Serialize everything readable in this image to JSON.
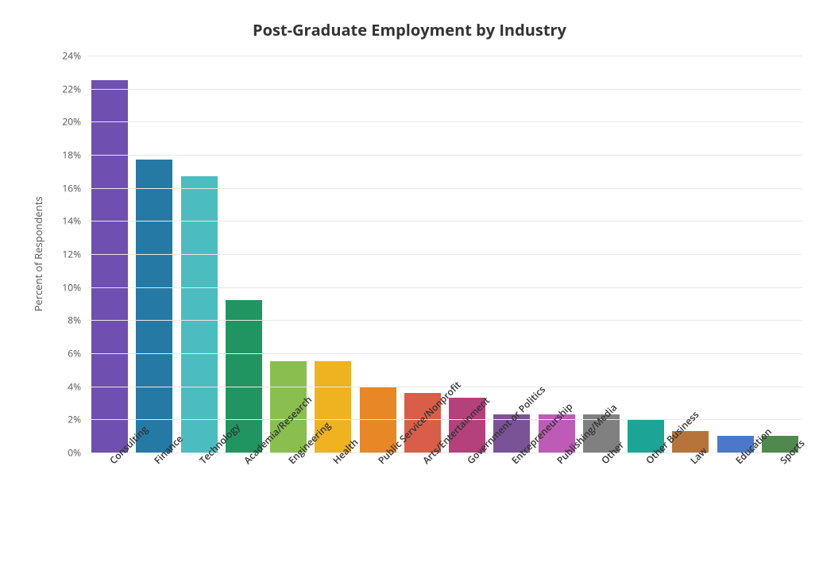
{
  "chart": {
    "type": "bar",
    "title": "Post-Graduate Employment by Industry",
    "title_fontsize": 20,
    "title_fontweight": 700,
    "title_color": "#333333",
    "background_color": "#ffffff",
    "grid_color": "#e8e8e8",
    "axis_label_color": "#555555",
    "tick_label_color": "#555555",
    "x_tick_label_color": "#333333",
    "x_tick_fontsize": 12,
    "x_tick_fontweight": 600,
    "y_tick_fontsize": 12,
    "y_axis_label": "Percent of Respondents",
    "y_axis_label_fontsize": 13,
    "ylim": [
      0,
      24
    ],
    "ytick_step": 2,
    "ytick_suffix": "%",
    "bar_width_ratio": 0.82,
    "x_tick_rotation": -45,
    "categories": [
      "Consulting",
      "Finance",
      "Technology",
      "Academia/Research",
      "Engineering",
      "Health",
      "Public Service/Nonprofit",
      "Arts/Entertainment",
      "Government or Politics",
      "Entrepreneurship",
      "Publishing/Media",
      "Other",
      "Other Business",
      "Law",
      "Education",
      "Sports"
    ],
    "values": [
      22.5,
      17.7,
      16.7,
      9.2,
      5.5,
      5.5,
      4.0,
      3.6,
      3.3,
      2.3,
      2.3,
      2.3,
      2.0,
      1.3,
      1.0,
      1.0
    ],
    "bar_colors": [
      "#6f4fb0",
      "#257aa5",
      "#4bbdc0",
      "#209561",
      "#8abf4f",
      "#efb221",
      "#e78726",
      "#d95d48",
      "#b4407c",
      "#7a5296",
      "#bd5bb6",
      "#808080",
      "#1aa596",
      "#b6743b",
      "#4c78c9",
      "#4f8a4c"
    ]
  }
}
